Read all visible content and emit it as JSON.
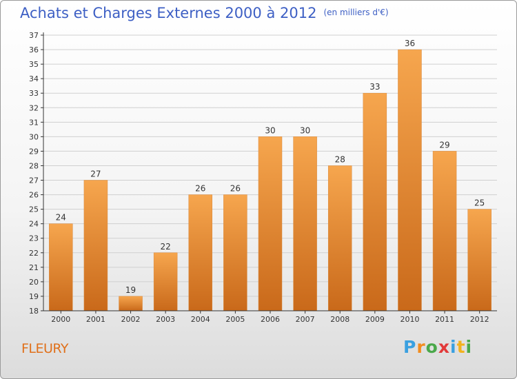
{
  "header": {
    "title": "Achats et Charges Externes 2000 à 2012",
    "unit": "(en milliers d'€)"
  },
  "footer": {
    "town": "FLEURY",
    "logo_letters": [
      "P",
      "r",
      "o",
      "x",
      "i",
      "t",
      "i"
    ],
    "logo_colors": [
      "#3aa0e0",
      "#f28c1e",
      "#4aa84a",
      "#e23a3a",
      "#3aa0e0",
      "#f2b21e",
      "#4aa84a"
    ]
  },
  "colors": {
    "title": "#3d5fc4",
    "bar_light": "#f6a64e",
    "bar_dark": "#c9691a",
    "axis": "#333333",
    "grid": "#cfcfcf",
    "town": "#e0701a"
  },
  "chart_data": {
    "type": "bar",
    "categories": [
      "2000",
      "2001",
      "2002",
      "2003",
      "2004",
      "2005",
      "2006",
      "2007",
      "2008",
      "2009",
      "2010",
      "2011",
      "2012"
    ],
    "values": [
      24,
      27,
      19,
      22,
      26,
      26,
      30,
      30,
      28,
      33,
      36,
      29,
      25
    ],
    "ylim": [
      18,
      37
    ],
    "yticks": [
      18,
      19,
      20,
      21,
      22,
      23,
      24,
      25,
      26,
      27,
      28,
      29,
      30,
      31,
      32,
      33,
      34,
      35,
      36,
      37
    ],
    "grid": true,
    "title": "Achats et Charges Externes 2000 à 2012",
    "xlabel": "",
    "ylabel": ""
  }
}
